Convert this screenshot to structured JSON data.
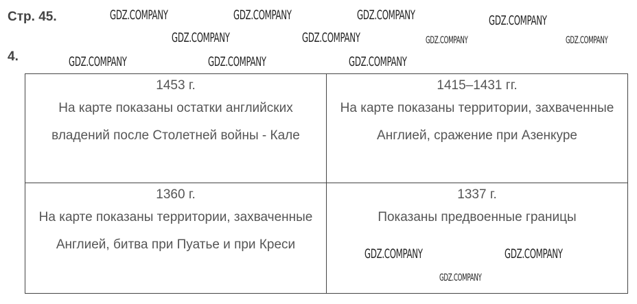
{
  "page_label": "Стр. 45.",
  "task_number": "4.",
  "watermark": "GDZ.COMPANY",
  "cells": [
    {
      "year": "1453 г.",
      "text": "На карте показаны остатки английских владений после Столетней войны - Кале"
    },
    {
      "year": "1415–1431 гг.",
      "text": "На карте показаны территории, захваченные Англией, сражение при Азенкуре"
    },
    {
      "year": "1360 г.",
      "text": "На карте показаны территории, захваченные Англией, битва при Пуатье и при Креси"
    },
    {
      "year": "1337 г.",
      "text": "Показаны предвоенные границы"
    }
  ]
}
